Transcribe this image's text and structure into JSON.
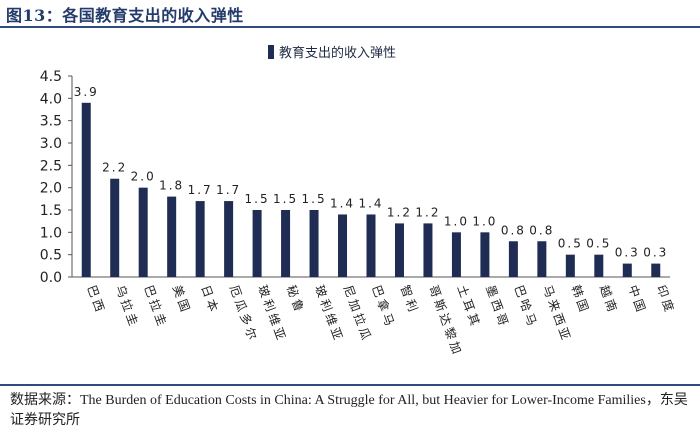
{
  "figure_title": "图13：各国教育支出的收入弹性",
  "source_text": "数据来源：The Burden of Education Costs in China: A Struggle for All, but Heavier for Lower-Income Families，东吴证券研究所",
  "colors": {
    "bar": "#1f2c54",
    "rule": "#2f4a7c",
    "title": "#243b6b"
  },
  "chart_data": {
    "type": "bar",
    "title": "",
    "xlabel": "",
    "ylabel": "",
    "legend": {
      "label": "教育支出的收入弹性",
      "position": "top-center"
    },
    "ylim": [
      0,
      4.5
    ],
    "yticks": [
      "0.0",
      "0.5",
      "1.0",
      "1.5",
      "2.0",
      "2.5",
      "3.0",
      "3.5",
      "4.0",
      "4.5"
    ],
    "grid": false,
    "categories": [
      "巴西",
      "乌拉圭",
      "巴拉圭",
      "美国",
      "日本",
      "厄瓜多尔",
      "玻利维亚",
      "秘鲁",
      "玻利维亚",
      "尼加拉瓜",
      "巴拿马",
      "智利",
      "哥斯达黎加",
      "土耳其",
      "墨西哥",
      "巴哈马",
      "马来西亚",
      "韩国",
      "越南",
      "中国",
      "印度"
    ],
    "values": [
      3.9,
      2.2,
      2.0,
      1.8,
      1.7,
      1.7,
      1.5,
      1.5,
      1.5,
      1.4,
      1.4,
      1.2,
      1.2,
      1.0,
      1.0,
      0.8,
      0.8,
      0.5,
      0.5,
      0.3,
      0.3
    ],
    "data_labels": [
      "3.9",
      "2.2",
      "2.0",
      "1.8",
      "1.7",
      "1.7",
      "1.5",
      "1.5",
      "1.5",
      "1.4",
      "1.4",
      "1.2",
      "1.2",
      "1.0",
      "1.0",
      "0.8",
      "0.8",
      "0.5",
      "0.5",
      "0.3",
      "0.3"
    ]
  }
}
